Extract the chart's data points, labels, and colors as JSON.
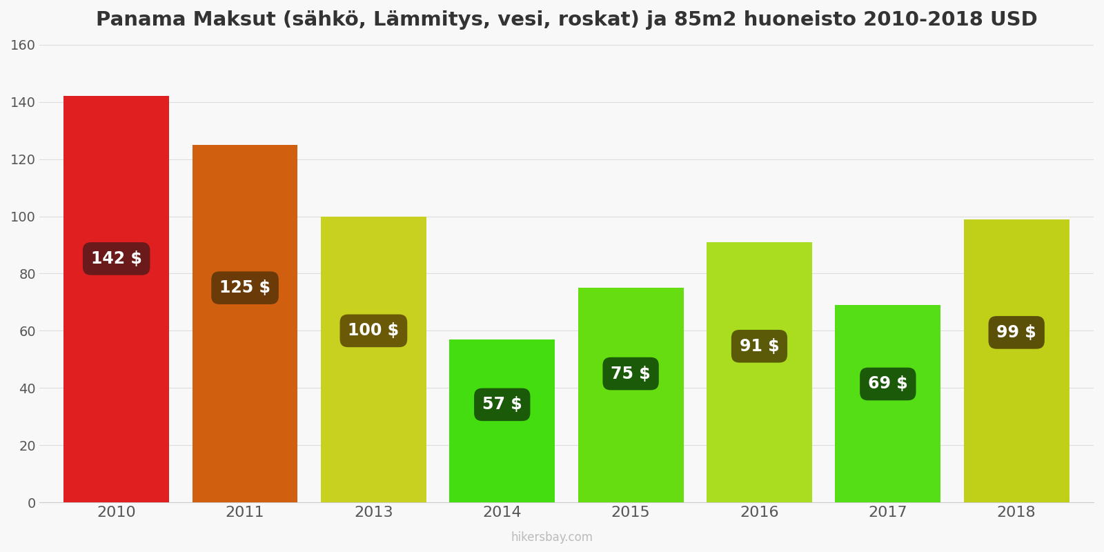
{
  "title": "Panama Maksut (sähkö, Lämmitys, vesi, roskat) ja 85m2 huoneisto 2010-2018 USD",
  "years": [
    "2010",
    "2011",
    "2013",
    "2014",
    "2015",
    "2016",
    "2017",
    "2018"
  ],
  "values": [
    142,
    125,
    100,
    57,
    75,
    91,
    69,
    99
  ],
  "bar_colors": [
    "#e02020",
    "#d06010",
    "#c8d020",
    "#44dd10",
    "#66dd10",
    "#aadd20",
    "#55dd15",
    "#c0d018"
  ],
  "label_bg_colors": [
    "#6a1a1a",
    "#6a3a08",
    "#6a5a08",
    "#1a5a08",
    "#1a5a08",
    "#5a5a08",
    "#1a5a08",
    "#5a5008"
  ],
  "ylim": [
    0,
    160
  ],
  "yticks": [
    0,
    20,
    40,
    60,
    80,
    100,
    120,
    140,
    160
  ],
  "watermark": "hikersbay.com",
  "bg_color": "#f8f8f8",
  "label_font_size": 17,
  "title_font_size": 21,
  "bar_width": 0.82
}
